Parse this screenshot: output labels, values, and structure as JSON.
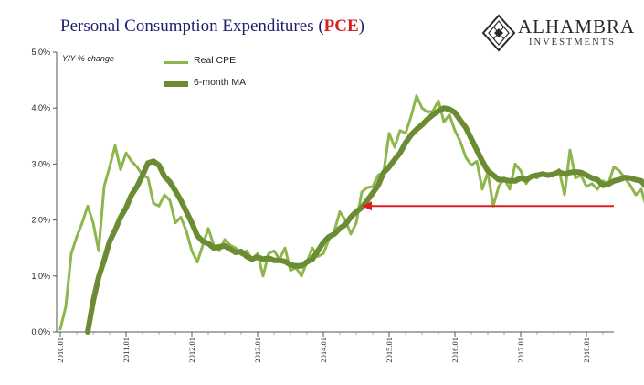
{
  "title": {
    "main": "Personal Consumption Expenditures (",
    "highlight": "PCE",
    "close": ")"
  },
  "logo": {
    "name": "ALHAMBRA",
    "sub": "INVESTMENTS"
  },
  "colors": {
    "real": "#8db64c",
    "ma": "#6b8c32",
    "arrow": "#e21d1d",
    "title": "#1f1f6e",
    "highlight": "#d42020"
  },
  "chart_data": {
    "type": "line",
    "ylabel": "Y/Y % change",
    "ylim": [
      0.0,
      5.0
    ],
    "y_ticks": [
      "0.0%",
      "1.0%",
      "2.0%",
      "3.0%",
      "4.0%",
      "5.0%"
    ],
    "x_ticks": [
      "2010.01",
      "2011.01",
      "2012.01",
      "2013.01",
      "2014.01",
      "2015.01",
      "2016.01",
      "2017.01",
      "2018.01"
    ],
    "x_start": "2010-01",
    "x_end": "2018-06",
    "legend_position": "top-left",
    "grid": false,
    "annotations": [
      {
        "type": "arrow",
        "direction": "left",
        "level": 2.25,
        "from": "2018-06",
        "to": "2014-08",
        "color": "#e21d1d"
      }
    ],
    "series": [
      {
        "name": "Real CPE",
        "values": [
          0.05,
          0.45,
          1.4,
          1.7,
          1.95,
          2.25,
          1.95,
          1.45,
          2.6,
          2.95,
          3.33,
          2.9,
          3.2,
          3.05,
          2.95,
          2.8,
          2.75,
          2.3,
          2.25,
          2.45,
          2.35,
          1.95,
          2.05,
          1.8,
          1.45,
          1.25,
          1.55,
          1.85,
          1.55,
          1.45,
          1.65,
          1.55,
          1.5,
          1.38,
          1.45,
          1.3,
          1.4,
          1.0,
          1.4,
          1.45,
          1.3,
          1.5,
          1.1,
          1.15,
          1.0,
          1.25,
          1.5,
          1.35,
          1.4,
          1.65,
          1.8,
          2.15,
          2.0,
          1.75,
          1.95,
          2.5,
          2.58,
          2.6,
          2.8,
          2.85,
          3.55,
          3.3,
          3.6,
          3.55,
          3.85,
          4.22,
          4.0,
          3.93,
          3.95,
          4.13,
          3.75,
          3.88,
          3.6,
          3.4,
          3.12,
          2.98,
          3.05,
          2.55,
          2.85,
          2.25,
          2.6,
          2.75,
          2.55,
          3.0,
          2.88,
          2.65,
          2.8,
          2.75,
          2.85,
          2.8,
          2.78,
          2.9,
          2.45,
          3.25,
          2.75,
          2.8,
          2.6,
          2.65,
          2.55,
          2.7,
          2.65,
          2.95,
          2.88,
          2.75,
          2.62,
          2.45,
          2.55,
          2.2
        ]
      },
      {
        "name": "6-month MA",
        "values": [
          null,
          null,
          null,
          null,
          null,
          0.0,
          0.55,
          0.98,
          1.28,
          1.62,
          1.82,
          2.05,
          2.22,
          2.45,
          2.6,
          2.8,
          3.02,
          3.05,
          2.98,
          2.78,
          2.68,
          2.52,
          2.35,
          2.15,
          1.95,
          1.72,
          1.62,
          1.58,
          1.5,
          1.52,
          1.54,
          1.48,
          1.42,
          1.44,
          1.35,
          1.3,
          1.34,
          1.3,
          1.32,
          1.28,
          1.28,
          1.26,
          1.2,
          1.18,
          1.18,
          1.25,
          1.3,
          1.45,
          1.6,
          1.7,
          1.75,
          1.85,
          1.92,
          2.05,
          2.15,
          2.22,
          2.35,
          2.48,
          2.62,
          2.85,
          2.95,
          3.08,
          3.2,
          3.38,
          3.52,
          3.62,
          3.7,
          3.8,
          3.88,
          3.95,
          4.0,
          3.98,
          3.92,
          3.78,
          3.65,
          3.45,
          3.25,
          3.05,
          2.88,
          2.8,
          2.72,
          2.72,
          2.7,
          2.7,
          2.75,
          2.72,
          2.78,
          2.8,
          2.82,
          2.8,
          2.82,
          2.86,
          2.82,
          2.85,
          2.86,
          2.85,
          2.8,
          2.75,
          2.72,
          2.62,
          2.64,
          2.7,
          2.72,
          2.76,
          2.75,
          2.72,
          2.7,
          2.58
        ]
      }
    ]
  }
}
